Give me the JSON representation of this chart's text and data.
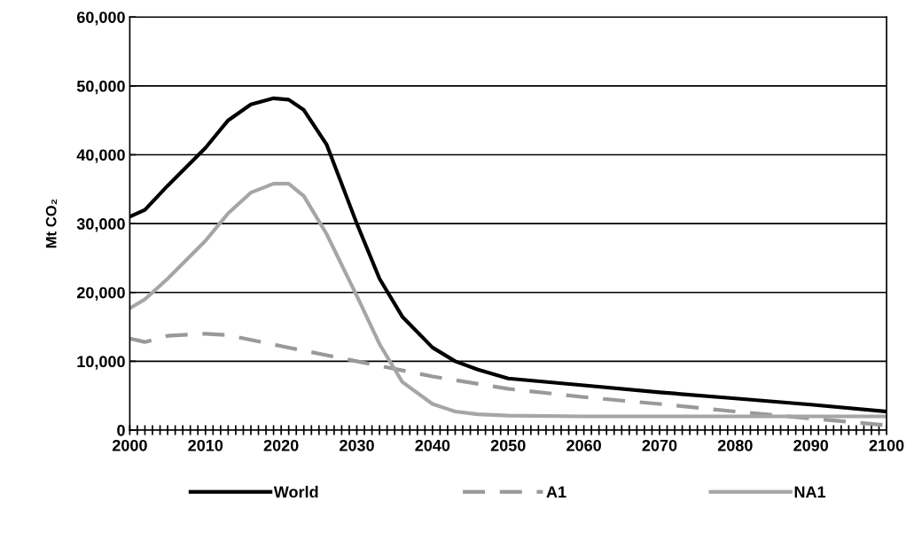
{
  "chart_data": {
    "type": "line",
    "ylabel": "Mt CO₂",
    "xlim": [
      2000,
      2100
    ],
    "ylim": [
      0,
      60000
    ],
    "xticks": [
      2000,
      {
        "value": 2001,
        "label": null
      },
      {
        "value": 2002,
        "label": null
      },
      {
        "value": 2003,
        "label": null
      },
      {
        "value": 2004,
        "label": null
      },
      {
        "value": 2005,
        "label": null
      },
      {
        "value": 2006,
        "label": null
      },
      {
        "value": 2007,
        "label": null
      },
      {
        "value": 2008,
        "label": null
      },
      {
        "value": 2009,
        "label": null
      },
      2010,
      {
        "value": 2011,
        "label": null
      },
      {
        "value": 2012,
        "label": null
      },
      {
        "value": 2013,
        "label": null
      },
      {
        "value": 2014,
        "label": null
      },
      {
        "value": 2015,
        "label": null
      },
      {
        "value": 2016,
        "label": null
      },
      {
        "value": 2017,
        "label": null
      },
      {
        "value": 2018,
        "label": null
      },
      {
        "value": 2019,
        "label": null
      },
      2020,
      {
        "value": 2021,
        "label": null
      },
      {
        "value": 2022,
        "label": null
      },
      {
        "value": 2023,
        "label": null
      },
      {
        "value": 2024,
        "label": null
      },
      {
        "value": 2025,
        "label": null
      },
      {
        "value": 2026,
        "label": null
      },
      {
        "value": 2027,
        "label": null
      },
      {
        "value": 2028,
        "label": null
      },
      {
        "value": 2029,
        "label": null
      },
      2030,
      {
        "value": 2031,
        "label": null
      },
      {
        "value": 2032,
        "label": null
      },
      {
        "value": 2033,
        "label": null
      },
      {
        "value": 2034,
        "label": null
      },
      {
        "value": 2035,
        "label": null
      },
      {
        "value": 2036,
        "label": null
      },
      {
        "value": 2037,
        "label": null
      },
      {
        "value": 2038,
        "label": null
      },
      {
        "value": 2039,
        "label": null
      },
      2040,
      {
        "value": 2041,
        "label": null
      },
      {
        "value": 2042,
        "label": null
      },
      {
        "value": 2043,
        "label": null
      },
      {
        "value": 2044,
        "label": null
      },
      {
        "value": 2045,
        "label": null
      },
      {
        "value": 2046,
        "label": null
      },
      {
        "value": 2047,
        "label": null
      },
      {
        "value": 2048,
        "label": null
      },
      {
        "value": 2049,
        "label": null
      },
      2050,
      {
        "value": 2051,
        "label": null
      },
      {
        "value": 2052,
        "label": null
      },
      {
        "value": 2053,
        "label": null
      },
      {
        "value": 2054,
        "label": null
      },
      {
        "value": 2055,
        "label": null
      },
      {
        "value": 2056,
        "label": null
      },
      {
        "value": 2057,
        "label": null
      },
      {
        "value": 2058,
        "label": null
      },
      {
        "value": 2059,
        "label": null
      },
      2060,
      {
        "value": 2061,
        "label": null
      },
      {
        "value": 2062,
        "label": null
      },
      {
        "value": 2063,
        "label": null
      },
      {
        "value": 2064,
        "label": null
      },
      {
        "value": 2065,
        "label": null
      },
      {
        "value": 2066,
        "label": null
      },
      {
        "value": 2067,
        "label": null
      },
      {
        "value": 2068,
        "label": null
      },
      {
        "value": 2069,
        "label": null
      },
      2070,
      {
        "value": 2071,
        "label": null
      },
      {
        "value": 2072,
        "label": null
      },
      {
        "value": 2073,
        "label": null
      },
      {
        "value": 2074,
        "label": null
      },
      {
        "value": 2075,
        "label": null
      },
      {
        "value": 2076,
        "label": null
      },
      {
        "value": 2077,
        "label": null
      },
      {
        "value": 2078,
        "label": null
      },
      {
        "value": 2079,
        "label": null
      },
      2080,
      {
        "value": 2081,
        "label": null
      },
      {
        "value": 2082,
        "label": null
      },
      {
        "value": 2083,
        "label": null
      },
      {
        "value": 2084,
        "label": null
      },
      {
        "value": 2085,
        "label": null
      },
      {
        "value": 2086,
        "label": null
      },
      {
        "value": 2087,
        "label": null
      },
      {
        "value": 2088,
        "label": null
      },
      {
        "value": 2089,
        "label": null
      },
      2090,
      {
        "value": 2091,
        "label": null
      },
      {
        "value": 2092,
        "label": null
      },
      {
        "value": 2093,
        "label": null
      },
      {
        "value": 2094,
        "label": null
      },
      {
        "value": 2095,
        "label": null
      },
      {
        "value": 2096,
        "label": null
      },
      {
        "value": 2097,
        "label": null
      },
      {
        "value": 2098,
        "label": null
      },
      {
        "value": 2099,
        "label": null
      },
      2100
    ],
    "yticks": [
      {
        "value": 0,
        "label": "0"
      },
      {
        "value": 10000,
        "label": "10,000"
      },
      {
        "value": 20000,
        "label": "20,000"
      },
      {
        "value": 30000,
        "label": "30,000"
      },
      {
        "value": 40000,
        "label": "40,000"
      },
      {
        "value": 50000,
        "label": "50,000"
      },
      {
        "value": 60000,
        "label": "60,000"
      }
    ],
    "grid": "y",
    "legend": "bottom",
    "marker": "none",
    "series": [
      {
        "name": "World",
        "color": "#000000",
        "line_style": "solid",
        "x": [
          2000,
          2002,
          2005,
          2010,
          2013,
          2016,
          2019,
          2021,
          2023,
          2026,
          2030,
          2033,
          2036,
          2040,
          2043,
          2046,
          2050,
          2060,
          2070,
          2080,
          2090,
          2100
        ],
        "values": [
          31000,
          32000,
          35500,
          41000,
          45000,
          47300,
          48200,
          48000,
          46500,
          41500,
          30000,
          22000,
          16500,
          12000,
          10000,
          8800,
          7500,
          6500,
          5500,
          4600,
          3700,
          2700
        ]
      },
      {
        "name": "A1",
        "color": "#999999",
        "line_style": "dashed",
        "x": [
          2000,
          2002,
          2005,
          2010,
          2013,
          2020,
          2030,
          2040,
          2050,
          2060,
          2070,
          2080,
          2090,
          2100
        ],
        "values": [
          13300,
          12800,
          13700,
          14000,
          13800,
          12200,
          10000,
          7800,
          6000,
          4800,
          3800,
          2700,
          1700,
          700
        ]
      },
      {
        "name": "NA1",
        "color": "#a6a6a6",
        "line_style": "solid",
        "x": [
          2000,
          2002,
          2005,
          2010,
          2013,
          2016,
          2019,
          2021,
          2023,
          2026,
          2030,
          2033,
          2036,
          2040,
          2043,
          2046,
          2050,
          2060,
          2080,
          2100
        ],
        "values": [
          17700,
          19000,
          22000,
          27500,
          31500,
          34500,
          35800,
          35800,
          34000,
          28500,
          19500,
          12500,
          7000,
          3800,
          2700,
          2300,
          2100,
          2000,
          2000,
          2000
        ]
      }
    ]
  }
}
